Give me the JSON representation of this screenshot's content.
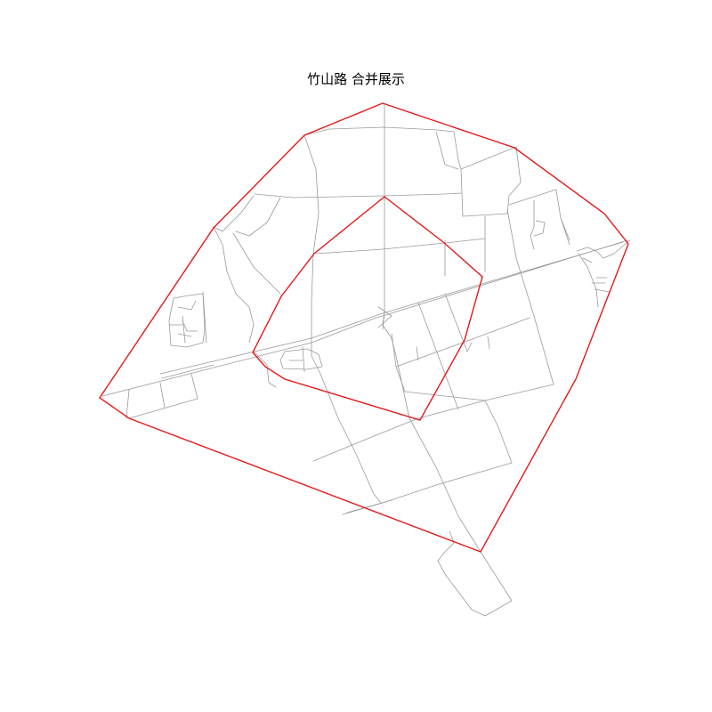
{
  "map": {
    "title": "竹山路  合并展示",
    "boundary_color": "#e41a1c",
    "road_color": "#9a9a9a",
    "background": "#ffffff"
  }
}
